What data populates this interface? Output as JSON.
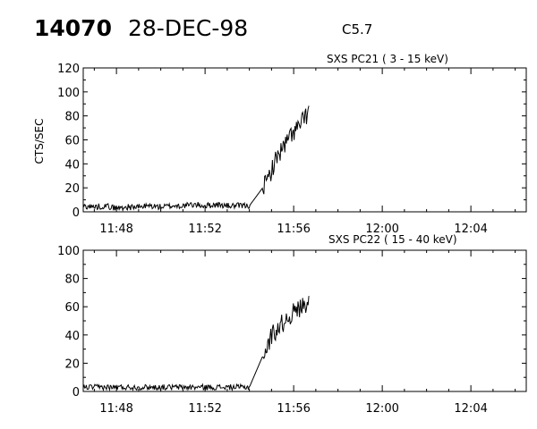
{
  "header": {
    "event_number": "14070",
    "date": "28-DEC-98",
    "flare_class": "C5.7"
  },
  "colors": {
    "background": "#ffffff",
    "ink": "#000000"
  },
  "chart_data": [
    {
      "type": "line",
      "panel": "top",
      "title": "SXS PC21  (  3 - 15 keV)",
      "ylabel": "CTS/SEC",
      "xlabel": "",
      "ylim": [
        0,
        120
      ],
      "yticks": [
        0,
        20,
        40,
        60,
        80,
        100,
        120
      ],
      "xlim_minutes": [
        706.5,
        726.5
      ],
      "xticks": [
        "11:48",
        "11:52",
        "11:56",
        "12:00",
        "12:04"
      ],
      "grid": false,
      "legend": "none",
      "series": [
        {
          "x": [
            "11:46.5",
            "11:47.0",
            "11:47.5",
            "11:48.0",
            "11:48.5",
            "11:49.0",
            "11:49.5",
            "11:50.0",
            "11:50.5",
            "11:51.0",
            "11:51.5",
            "11:52.0",
            "11:52.5",
            "11:53.0",
            "11:53.5",
            "11:54.0",
            "11:54.6",
            "11:54.8",
            "11:55.0",
            "11:55.3",
            "11:55.6",
            "11:55.9",
            "11:56.2",
            "11:56.5",
            "11:56.7"
          ],
          "values": [
            5,
            4,
            5,
            3,
            4,
            4,
            5,
            4,
            5,
            5,
            6,
            5,
            6,
            5,
            5,
            5,
            20,
            25,
            35,
            48,
            55,
            65,
            70,
            78,
            85
          ]
        }
      ]
    },
    {
      "type": "line",
      "panel": "bottom",
      "title": "SXS PC22  ( 15 - 40 keV)",
      "ylabel": "",
      "xlabel": "",
      "ylim": [
        0,
        100
      ],
      "yticks": [
        0,
        20,
        40,
        60,
        80,
        100
      ],
      "xlim_minutes": [
        706.5,
        726.5
      ],
      "xticks": [
        "11:48",
        "11:52",
        "11:56",
        "12:00",
        "12:04"
      ],
      "grid": false,
      "legend": "none",
      "series": [
        {
          "x": [
            "11:46.5",
            "11:47.0",
            "11:47.5",
            "11:48.0",
            "11:48.5",
            "11:49.0",
            "11:49.5",
            "11:50.0",
            "11:50.5",
            "11:51.0",
            "11:51.5",
            "11:52.0",
            "11:52.5",
            "11:53.0",
            "11:53.5",
            "11:54.0",
            "11:54.6",
            "11:54.8",
            "11:55.0",
            "11:55.3",
            "11:55.6",
            "11:55.9",
            "11:56.2",
            "11:56.5",
            "11:56.7"
          ],
          "values": [
            3,
            3,
            3,
            3,
            3,
            3,
            3,
            3,
            3,
            3,
            3,
            3,
            3,
            3,
            3,
            3,
            25,
            30,
            40,
            45,
            50,
            55,
            58,
            62,
            65
          ]
        }
      ]
    }
  ]
}
